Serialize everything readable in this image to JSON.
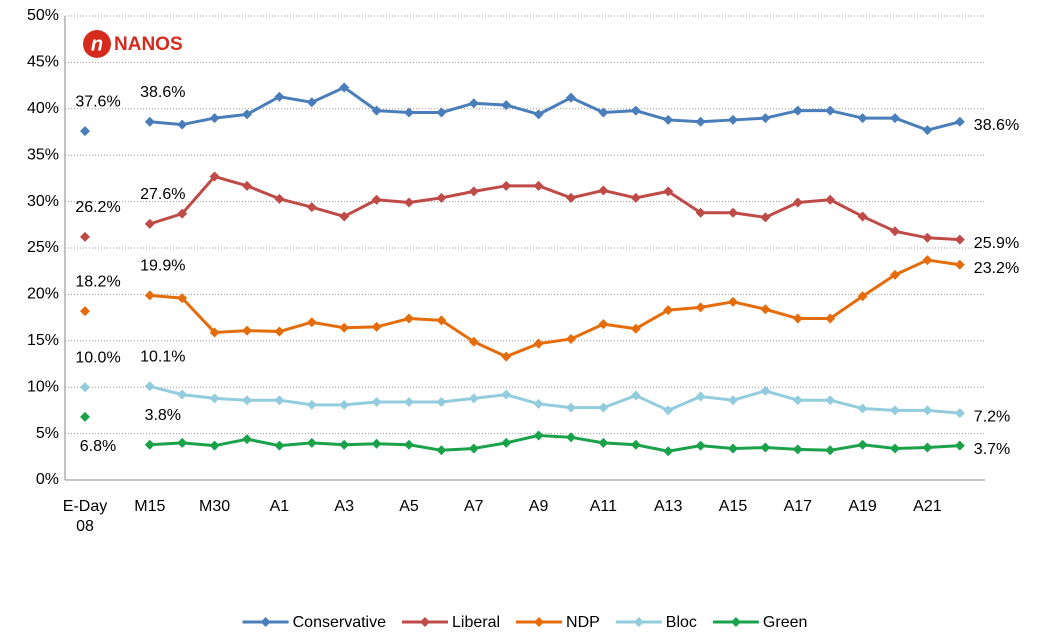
{
  "chart_data": {
    "type": "line",
    "logo": "NANOS",
    "categories": [
      "E-Day 08",
      null,
      "M15",
      null,
      "M30",
      null,
      "A1",
      null,
      "A3",
      null,
      "A5",
      null,
      "A7",
      null,
      "A9",
      null,
      "A11",
      null,
      "A13",
      null,
      "A15",
      null,
      "A17",
      null,
      "A19",
      null,
      "A21",
      null
    ],
    "ylim": [
      0,
      50
    ],
    "yticks": [
      {
        "value": 0,
        "label": "0%"
      },
      {
        "value": 5,
        "label": "5%"
      },
      {
        "value": 10,
        "label": "10%"
      },
      {
        "value": 15,
        "label": "15%"
      },
      {
        "value": 20,
        "label": "20%"
      },
      {
        "value": 25,
        "label": "25%"
      },
      {
        "value": 30,
        "label": "30%"
      },
      {
        "value": 35,
        "label": "35%"
      },
      {
        "value": 40,
        "label": "40%"
      },
      {
        "value": 45,
        "label": "45%"
      },
      {
        "value": 50,
        "label": "50%"
      }
    ],
    "grid": true,
    "legend": "bottom",
    "series": [
      {
        "name": "Conservative",
        "color": "#4a7ebb",
        "values": [
          37.6,
          null,
          38.6,
          38.3,
          39.0,
          39.4,
          41.3,
          40.7,
          42.3,
          39.8,
          39.6,
          39.6,
          40.6,
          40.4,
          39.4,
          41.2,
          39.6,
          39.8,
          38.8,
          38.6,
          38.8,
          39.0,
          39.8,
          39.8,
          39.0,
          39.0,
          37.7,
          38.6
        ],
        "value_labels": [
          "37.6%",
          null,
          "38.6%",
          null,
          null,
          null,
          null,
          null,
          null,
          null,
          null,
          null,
          null,
          null,
          null,
          null,
          null,
          null,
          null,
          null,
          null,
          null,
          null,
          null,
          null,
          null,
          null,
          "38.6%"
        ]
      },
      {
        "name": "Liberal",
        "color": "#be4b48",
        "values": [
          26.2,
          null,
          27.6,
          28.7,
          32.7,
          31.7,
          30.3,
          29.4,
          28.4,
          30.2,
          29.9,
          30.4,
          31.1,
          31.7,
          31.7,
          30.4,
          31.2,
          30.4,
          31.1,
          28.8,
          28.8,
          28.3,
          29.9,
          30.2,
          28.4,
          26.8,
          26.1,
          25.9
        ],
        "value_labels": [
          "26.2%",
          null,
          "27.6%",
          null,
          null,
          null,
          null,
          null,
          null,
          null,
          null,
          null,
          null,
          null,
          null,
          null,
          null,
          null,
          null,
          null,
          null,
          null,
          null,
          null,
          null,
          null,
          null,
          "25.9%"
        ]
      },
      {
        "name": "NDP",
        "color": "#e46c0a",
        "values": [
          18.2,
          null,
          19.9,
          19.6,
          15.9,
          16.1,
          16.0,
          17.0,
          16.4,
          16.5,
          17.4,
          17.2,
          14.9,
          13.3,
          14.7,
          15.2,
          16.8,
          16.3,
          18.3,
          18.6,
          19.2,
          18.4,
          17.4,
          17.4,
          19.8,
          22.1,
          23.7,
          23.2
        ],
        "value_labels": [
          "18.2%",
          null,
          "19.9%",
          null,
          null,
          null,
          null,
          null,
          null,
          null,
          null,
          null,
          null,
          null,
          null,
          null,
          null,
          null,
          null,
          null,
          null,
          null,
          null,
          null,
          null,
          null,
          null,
          "23.2%"
        ]
      },
      {
        "name": "Bloc",
        "color": "#93cddd",
        "values": [
          10.0,
          null,
          10.1,
          9.2,
          8.8,
          8.6,
          8.6,
          8.1,
          8.1,
          8.4,
          8.4,
          8.4,
          8.8,
          9.2,
          8.2,
          7.8,
          7.8,
          9.1,
          7.5,
          9.0,
          8.6,
          9.6,
          8.6,
          8.6,
          7.7,
          7.5,
          7.5,
          7.2
        ],
        "value_labels": [
          "10.0%",
          null,
          "10.1%",
          null,
          null,
          null,
          null,
          null,
          null,
          null,
          null,
          null,
          null,
          null,
          null,
          null,
          null,
          null,
          null,
          null,
          null,
          null,
          null,
          null,
          null,
          null,
          null,
          "7.2%"
        ]
      },
      {
        "name": "Green",
        "color": "#1aa24b",
        "values": [
          6.8,
          null,
          3.8,
          4.0,
          3.7,
          4.4,
          3.7,
          4.0,
          3.8,
          3.9,
          3.8,
          3.2,
          3.4,
          4.0,
          4.8,
          4.6,
          4.0,
          3.8,
          3.1,
          3.7,
          3.4,
          3.5,
          3.3,
          3.2,
          3.8,
          3.4,
          3.5,
          3.7
        ],
        "value_labels": [
          "6.8%",
          null,
          "3.8%",
          null,
          null,
          null,
          null,
          null,
          null,
          null,
          null,
          null,
          null,
          null,
          null,
          null,
          null,
          null,
          null,
          null,
          null,
          null,
          null,
          null,
          null,
          null,
          null,
          "3.7%"
        ]
      }
    ]
  }
}
